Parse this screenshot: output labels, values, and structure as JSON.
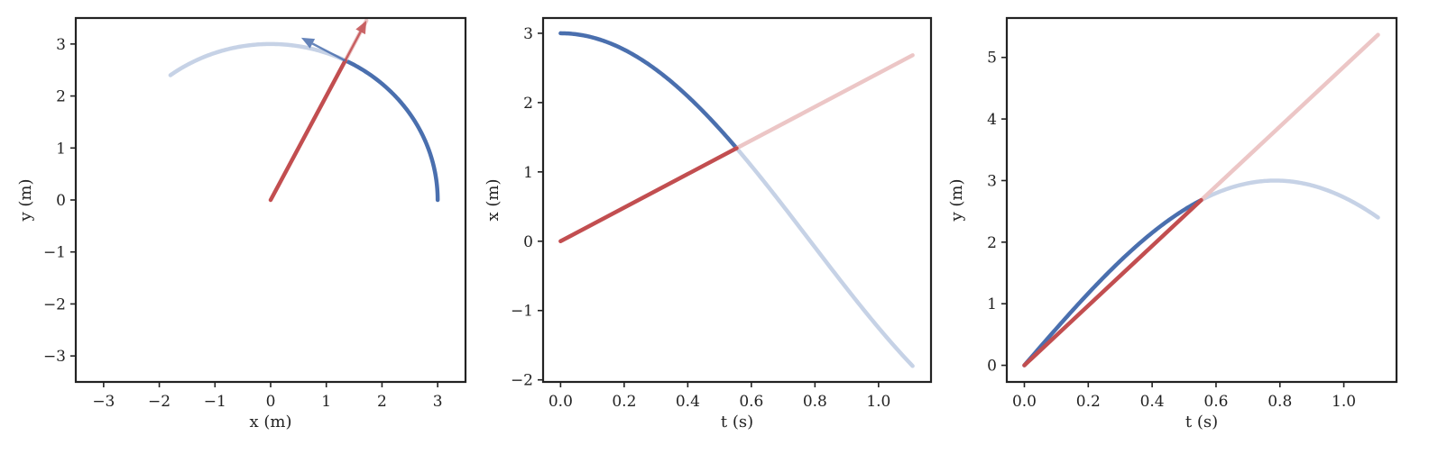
{
  "colors": {
    "blue": "#4a6fae",
    "blue_faded": "#c6d2e6",
    "red": "#c24e50",
    "red_faded": "#ecc6c6",
    "axes": "#222222"
  },
  "chart_data": [
    {
      "type": "line",
      "title": "",
      "xlabel": "x (m)",
      "ylabel": "y (m)",
      "xlim": [
        -3.5,
        3.5
      ],
      "ylim": [
        -3.5,
        3.5
      ],
      "xticks": [
        -3,
        -2,
        -1,
        0,
        1,
        2,
        3
      ],
      "yticks": [
        -3,
        -2,
        -1,
        0,
        1,
        2,
        3
      ],
      "xtick_labels": [
        "−3",
        "−2",
        "−1",
        "0",
        "1",
        "2",
        "3"
      ],
      "ytick_labels": [
        "−3",
        "−2",
        "−1",
        "0",
        "1",
        "2",
        "3"
      ],
      "grid": false,
      "series": [
        {
          "color_key": "blue_faded",
          "shape": "arc",
          "radius": 3,
          "theta_range_deg": [
            63.43,
            126.87
          ]
        },
        {
          "color_key": "blue",
          "shape": "arc",
          "radius": 3,
          "theta_range_deg": [
            0,
            63.43
          ]
        },
        {
          "color_key": "red_faded",
          "shape": "segment",
          "points": [
            [
              1.34,
              2.68
            ],
            [
              1.72,
              3.45
            ]
          ]
        },
        {
          "color_key": "red",
          "shape": "segment",
          "points": [
            [
              0,
              0
            ],
            [
              1.34,
              2.68
            ]
          ]
        }
      ],
      "arrows": [
        {
          "color_key": "red",
          "from": [
            1.3,
            2.6
          ],
          "to": [
            1.72,
            3.45
          ]
        },
        {
          "color_key": "blue",
          "from": [
            1.34,
            2.68
          ],
          "to": [
            0.55,
            3.12
          ]
        }
      ]
    },
    {
      "type": "line",
      "title": "",
      "xlabel": "t (s)",
      "ylabel": "x (m)",
      "xlim": [
        -0.055,
        1.165
      ],
      "ylim": [
        -2.03,
        3.22
      ],
      "xticks": [
        0.0,
        0.2,
        0.4,
        0.6,
        0.8,
        1.0
      ],
      "yticks": [
        -2,
        -1,
        0,
        1,
        2,
        3
      ],
      "xtick_labels": [
        "0.0",
        "0.2",
        "0.4",
        "0.6",
        "0.8",
        "1.0"
      ],
      "ytick_labels": [
        "−2",
        "−1",
        "0",
        "1",
        "2",
        "3"
      ],
      "grid": false,
      "series": [
        {
          "color_key": "blue_faded",
          "shape": "curve",
          "function": "3*cos(2*t)",
          "t_range": [
            0.5536,
            1.1071
          ]
        },
        {
          "color_key": "blue",
          "shape": "curve",
          "function": "3*cos(2*t)",
          "t_range": [
            0,
            0.5536
          ]
        },
        {
          "color_key": "red_faded",
          "shape": "segment",
          "points": [
            [
              0.5536,
              1.342
            ],
            [
              1.1071,
              2.683
            ]
          ]
        },
        {
          "color_key": "red",
          "shape": "segment",
          "points": [
            [
              0,
              0
            ],
            [
              0.5536,
              1.342
            ]
          ]
        }
      ]
    },
    {
      "type": "line",
      "title": "",
      "xlabel": "t (s)",
      "ylabel": "y (m)",
      "xlim": [
        -0.055,
        1.165
      ],
      "ylim": [
        -0.27,
        5.64
      ],
      "xticks": [
        0.0,
        0.2,
        0.4,
        0.6,
        0.8,
        1.0
      ],
      "yticks": [
        0,
        1,
        2,
        3,
        4,
        5
      ],
      "xtick_labels": [
        "0.0",
        "0.2",
        "0.4",
        "0.6",
        "0.8",
        "1.0"
      ],
      "ytick_labels": [
        "0",
        "1",
        "2",
        "3",
        "4",
        "5"
      ],
      "grid": false,
      "series": [
        {
          "color_key": "blue_faded",
          "shape": "curve",
          "function": "3*sin(2*t)",
          "t_range": [
            0.5536,
            1.1071
          ]
        },
        {
          "color_key": "blue",
          "shape": "curve",
          "function": "3*sin(2*t)",
          "t_range": [
            0,
            0.5536
          ]
        },
        {
          "color_key": "red_faded",
          "shape": "segment",
          "points": [
            [
              0.5536,
              2.683
            ],
            [
              1.1071,
              5.367
            ]
          ]
        },
        {
          "color_key": "red",
          "shape": "segment",
          "points": [
            [
              0,
              0
            ],
            [
              0.5536,
              2.683
            ]
          ]
        }
      ]
    }
  ]
}
